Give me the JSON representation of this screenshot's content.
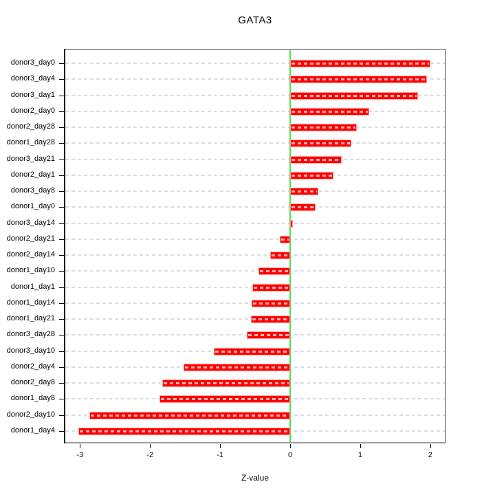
{
  "title": "GATA3",
  "xlabel": "Z-value",
  "colors": {
    "bar": "#ff0000",
    "bar_edge": "#ff9a9a",
    "zero_line": "#4be44b",
    "gridline": "#dcdcdc",
    "box_border": "#9e9e9e",
    "axis": "#000000",
    "background": "#ffffff"
  },
  "chart_data": {
    "type": "bar",
    "orientation": "horizontal",
    "title": "GATA3",
    "xlabel": "Z-value",
    "ylabel": "",
    "categories": [
      "donor3_day0",
      "donor3_day4",
      "donor3_day1",
      "donor2_day0",
      "donor2_day28",
      "donor1_day28",
      "donor3_day21",
      "donor2_day1",
      "donor3_day8",
      "donor1_day0",
      "donor3_day14",
      "donor2_day21",
      "donor2_day14",
      "donor1_day10",
      "donor1_day1",
      "donor1_day14",
      "donor1_day21",
      "donor3_day28",
      "donor3_day10",
      "donor2_day4",
      "donor2_day8",
      "donor1_day8",
      "donor2_day10",
      "donor1_day4"
    ],
    "values": [
      2.0,
      1.95,
      1.83,
      1.13,
      0.95,
      0.87,
      0.74,
      0.62,
      0.4,
      0.36,
      0.04,
      -0.15,
      -0.28,
      -0.45,
      -0.54,
      -0.55,
      -0.56,
      -0.62,
      -1.09,
      -1.52,
      -1.83,
      -1.86,
      -2.87,
      -3.02
    ],
    "x_ticks": [
      -3,
      -2,
      -1,
      0,
      1,
      2
    ],
    "xlim": [
      -3.23,
      2.22
    ],
    "grid": "dashed-horizontal",
    "legend": "none",
    "zero_reference_line": 0
  }
}
